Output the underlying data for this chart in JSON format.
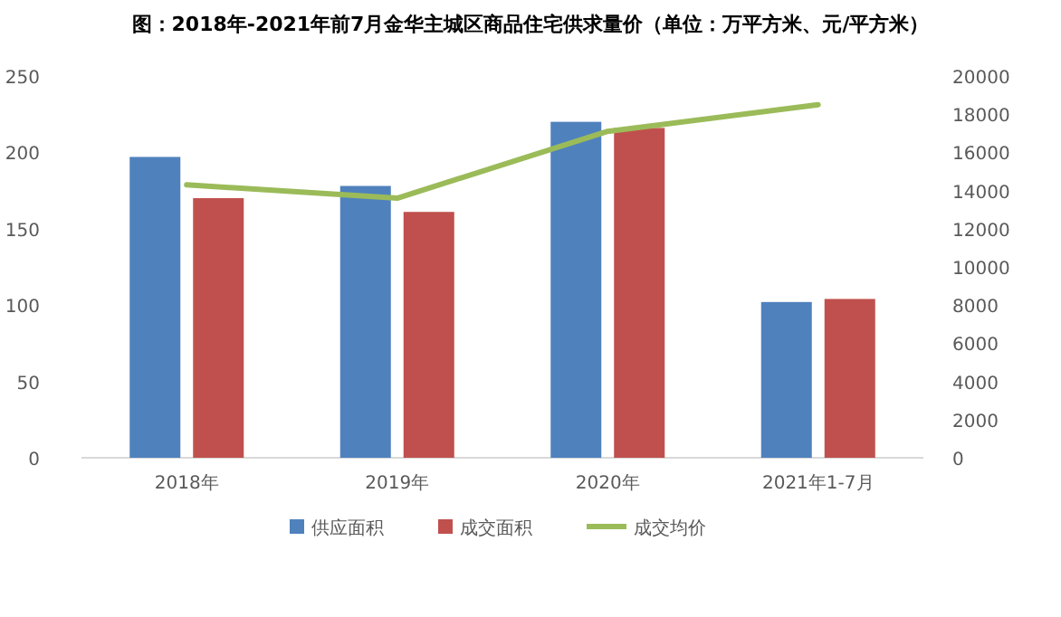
{
  "chart_data": {
    "type": "bar",
    "title": "图：2018年-2021年前7月金华主城区商品住宅供求量价（单位：万平方米、元/平方米）",
    "categories": [
      "2018年",
      "2019年",
      "2020年",
      "2021年1-7月"
    ],
    "series": [
      {
        "name": "供应面积",
        "color": "#4f81bd",
        "values": [
          197,
          178,
          220,
          102
        ]
      },
      {
        "name": "成交面积",
        "color": "#c0504d",
        "values": [
          170,
          161,
          216,
          104
        ]
      },
      {
        "name": "成交均价",
        "color": "#9bbb59",
        "type": "line",
        "axis": "y2",
        "values": [
          14300,
          13600,
          17100,
          18500
        ]
      }
    ],
    "ylim": [
      0,
      250
    ],
    "yticks": [
      0,
      50,
      100,
      150,
      200,
      250
    ],
    "y2lim": [
      0,
      20000
    ],
    "y2ticks": [
      0,
      2000,
      4000,
      6000,
      8000,
      10000,
      12000,
      14000,
      16000,
      18000,
      20000
    ],
    "grid": false,
    "legend": "bottom"
  }
}
